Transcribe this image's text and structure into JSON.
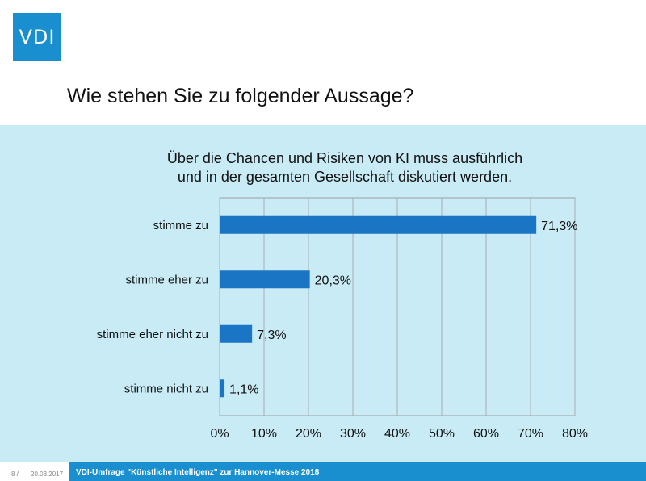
{
  "logo": {
    "text": "VDI",
    "color": "#1a8fd0"
  },
  "slide_title": "Wie stehen Sie zu folgender Aussage?",
  "chart_data": {
    "type": "bar",
    "orientation": "horizontal",
    "title_line1": "Über die Chancen und Risiken von KI muss ausführlich",
    "title_line2": "und in der gesamten Gesellschaft diskutiert werden.",
    "categories": [
      "stimme zu",
      "stimme eher zu",
      "stimme eher nicht zu",
      "stimme nicht zu"
    ],
    "values": [
      71.3,
      20.3,
      7.3,
      1.1
    ],
    "value_labels": [
      "71,3%",
      "20,3%",
      "7,3%",
      "1,1%"
    ],
    "xlim": [
      0,
      80
    ],
    "x_ticks": [
      0,
      10,
      20,
      30,
      40,
      50,
      60,
      70,
      80
    ],
    "x_tick_labels": [
      "0%",
      "10%",
      "20%",
      "30%",
      "40%",
      "50%",
      "60%",
      "70%",
      "80%"
    ],
    "grid": "vertical",
    "bar_color": "#1a75c4"
  },
  "footer": {
    "page": "8 /",
    "date": "20.03.2017",
    "caption": "VDI-Umfrage \"Künstliche Intelligenz\" zur Hannover-Messe 2018"
  }
}
